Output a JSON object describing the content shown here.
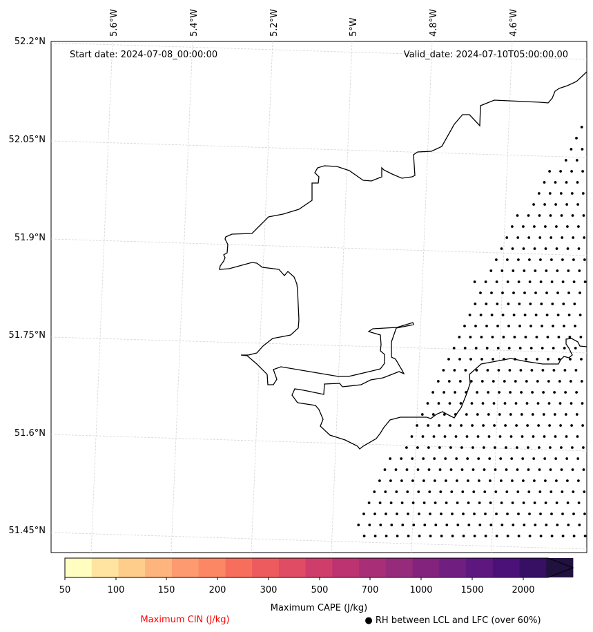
{
  "header": {
    "start_date": "Start date: 2024-07-08_00:00:00",
    "valid_date": "Valid_date: 2024-07-10T05:00:00.00"
  },
  "map": {
    "lon_ticks": [
      "5.6°W",
      "5.4°W",
      "5.2°W",
      "5°W",
      "4.8°W",
      "4.6°W"
    ],
    "lat_ticks": [
      "52.2°N",
      "52.05°N",
      "51.9°N",
      "51.75°N",
      "51.6°N",
      "51.45°N"
    ],
    "coastline_color": "#000000",
    "gridline_color": "#d3d3d3",
    "stipple_description": "RH between LCL and LFC (over 60%)"
  },
  "colorbar": {
    "label": "Maximum CAPE (J/kg)",
    "tick_labels": [
      "50",
      "100",
      "150",
      "200",
      "300",
      "500",
      "700",
      "1000",
      "1500",
      "2000"
    ],
    "colors": [
      "#fffdc0",
      "#fee4a0",
      "#fecd8c",
      "#feb47d",
      "#fd9a6f",
      "#fb8765",
      "#f76f5c",
      "#ee5b5e",
      "#e04c63",
      "#cf3e6b",
      "#bd3371",
      "#a92e78",
      "#962a7b",
      "#83237e",
      "#701e80",
      "#5e177f",
      "#4b1178",
      "#370f63",
      "#21113f"
    ],
    "extend": "max"
  },
  "legend": {
    "cin_label": "Maximum CIN (J/kg)",
    "cin_color": "#ff0000",
    "rh_label": "● RH between LCL and LFC (over 60%)"
  }
}
